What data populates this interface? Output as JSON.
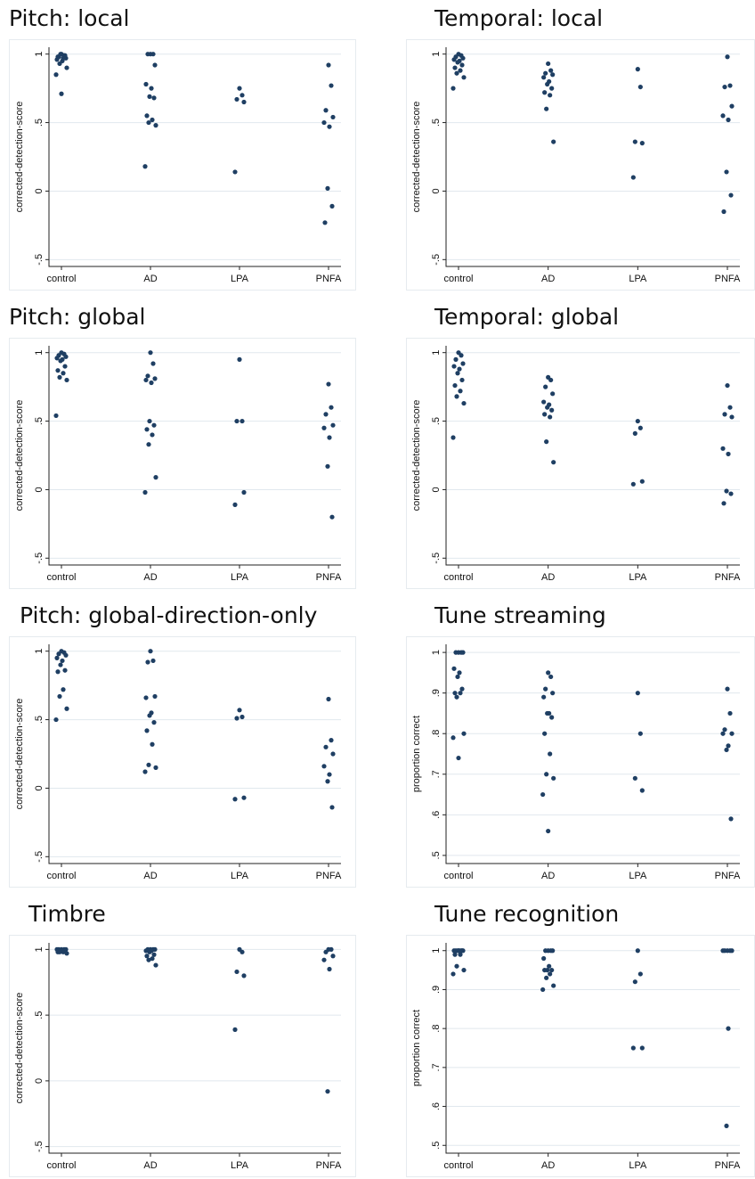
{
  "colors": {
    "point": "#1f3f63",
    "grid": "#e1e8ee"
  },
  "chart_data": [
    {
      "type": "scatter",
      "title": "Pitch: local",
      "xlabel": "",
      "ylabel": "corrected-detection-score",
      "categories": [
        "control",
        "AD",
        "LPA",
        "PNFA"
      ],
      "ylim": [
        -0.55,
        1.05
      ],
      "yticks": [
        -0.5,
        0,
        0.5,
        1
      ],
      "ytick_labels": [
        "-.5",
        "0",
        ".5",
        "1"
      ],
      "points": [
        [
          0,
          1
        ],
        [
          0,
          0.99
        ],
        [
          0,
          0.98
        ],
        [
          0,
          0.97
        ],
        [
          0,
          0.96
        ],
        [
          0,
          0.95
        ],
        [
          0,
          1
        ],
        [
          0,
          0.99
        ],
        [
          0,
          0.98
        ],
        [
          0,
          0.97
        ],
        [
          0,
          0.93
        ],
        [
          0,
          0.9
        ],
        [
          0,
          0.85
        ],
        [
          0,
          0.71
        ],
        [
          1,
          1
        ],
        [
          1,
          1
        ],
        [
          1,
          1
        ],
        [
          1,
          0.92
        ],
        [
          1,
          0.78
        ],
        [
          1,
          0.75
        ],
        [
          1,
          0.69
        ],
        [
          1,
          0.68
        ],
        [
          1,
          0.55
        ],
        [
          1,
          0.52
        ],
        [
          1,
          0.5
        ],
        [
          1,
          0.48
        ],
        [
          1,
          0.18
        ],
        [
          2,
          0.75
        ],
        [
          2,
          0.7
        ],
        [
          2,
          0.67
        ],
        [
          2,
          0.65
        ],
        [
          2,
          0.14
        ],
        [
          3,
          0.92
        ],
        [
          3,
          0.77
        ],
        [
          3,
          0.59
        ],
        [
          3,
          0.54
        ],
        [
          3,
          0.5
        ],
        [
          3,
          0.47
        ],
        [
          3,
          0.02
        ],
        [
          3,
          -0.11
        ],
        [
          3,
          -0.23
        ]
      ]
    },
    {
      "type": "scatter",
      "title": "Temporal: local",
      "xlabel": "",
      "ylabel": "corrected-detection-score",
      "categories": [
        "control",
        "AD",
        "LPA",
        "PNFA"
      ],
      "ylim": [
        -0.55,
        1.05
      ],
      "yticks": [
        -0.5,
        0,
        0.5,
        1
      ],
      "ytick_labels": [
        "-.5",
        "0",
        ".5",
        "1"
      ],
      "points": [
        [
          0,
          1
        ],
        [
          0,
          0.99
        ],
        [
          0,
          0.98
        ],
        [
          0,
          0.97
        ],
        [
          0,
          0.96
        ],
        [
          0,
          0.95
        ],
        [
          0,
          0.94
        ],
        [
          0,
          0.92
        ],
        [
          0,
          0.9
        ],
        [
          0,
          0.88
        ],
        [
          0,
          0.86
        ],
        [
          0,
          0.83
        ],
        [
          0,
          0.75
        ],
        [
          1,
          0.93
        ],
        [
          1,
          0.88
        ],
        [
          1,
          0.86
        ],
        [
          1,
          0.85
        ],
        [
          1,
          0.83
        ],
        [
          1,
          0.8
        ],
        [
          1,
          0.78
        ],
        [
          1,
          0.75
        ],
        [
          1,
          0.72
        ],
        [
          1,
          0.7
        ],
        [
          1,
          0.6
        ],
        [
          1,
          0.36
        ],
        [
          2,
          0.89
        ],
        [
          2,
          0.76
        ],
        [
          2,
          0.36
        ],
        [
          2,
          0.35
        ],
        [
          2,
          0.1
        ],
        [
          3,
          0.98
        ],
        [
          3,
          0.77
        ],
        [
          3,
          0.76
        ],
        [
          3,
          0.62
        ],
        [
          3,
          0.55
        ],
        [
          3,
          0.52
        ],
        [
          3,
          0.14
        ],
        [
          3,
          -0.03
        ],
        [
          3,
          -0.15
        ]
      ]
    },
    {
      "type": "scatter",
      "title": "Pitch: global",
      "xlabel": "",
      "ylabel": "corrected-detection-score",
      "categories": [
        "control",
        "AD",
        "LPA",
        "PNFA"
      ],
      "ylim": [
        -0.55,
        1.05
      ],
      "yticks": [
        -0.5,
        0,
        0.5,
        1
      ],
      "ytick_labels": [
        "-.5",
        "0",
        ".5",
        "1"
      ],
      "points": [
        [
          0,
          1
        ],
        [
          0,
          0.99
        ],
        [
          0,
          0.98
        ],
        [
          0,
          0.97
        ],
        [
          0,
          0.96
        ],
        [
          0,
          0.95
        ],
        [
          0,
          0.94
        ],
        [
          0,
          0.9
        ],
        [
          0,
          0.87
        ],
        [
          0,
          0.85
        ],
        [
          0,
          0.82
        ],
        [
          0,
          0.8
        ],
        [
          0,
          0.54
        ],
        [
          1,
          1
        ],
        [
          1,
          0.92
        ],
        [
          1,
          0.83
        ],
        [
          1,
          0.81
        ],
        [
          1,
          0.8
        ],
        [
          1,
          0.78
        ],
        [
          1,
          0.5
        ],
        [
          1,
          0.47
        ],
        [
          1,
          0.44
        ],
        [
          1,
          0.4
        ],
        [
          1,
          0.33
        ],
        [
          1,
          0.09
        ],
        [
          1,
          -0.02
        ],
        [
          2,
          0.95
        ],
        [
          2,
          0.5
        ],
        [
          2,
          0.5
        ],
        [
          2,
          -0.02
        ],
        [
          2,
          -0.11
        ],
        [
          3,
          0.77
        ],
        [
          3,
          0.6
        ],
        [
          3,
          0.55
        ],
        [
          3,
          0.47
        ],
        [
          3,
          0.45
        ],
        [
          3,
          0.38
        ],
        [
          3,
          0.17
        ],
        [
          3,
          -0.2
        ]
      ]
    },
    {
      "type": "scatter",
      "title": "Temporal: global",
      "xlabel": "",
      "ylabel": "corrected-detection-score",
      "categories": [
        "control",
        "AD",
        "LPA",
        "PNFA"
      ],
      "ylim": [
        -0.55,
        1.05
      ],
      "yticks": [
        -0.5,
        0,
        0.5,
        1
      ],
      "ytick_labels": [
        "-.5",
        "0",
        ".5",
        "1"
      ],
      "points": [
        [
          0,
          1
        ],
        [
          0,
          0.98
        ],
        [
          0,
          0.95
        ],
        [
          0,
          0.92
        ],
        [
          0,
          0.9
        ],
        [
          0,
          0.88
        ],
        [
          0,
          0.85
        ],
        [
          0,
          0.8
        ],
        [
          0,
          0.76
        ],
        [
          0,
          0.72
        ],
        [
          0,
          0.68
        ],
        [
          0,
          0.63
        ],
        [
          0,
          0.38
        ],
        [
          1,
          0.82
        ],
        [
          1,
          0.8
        ],
        [
          1,
          0.75
        ],
        [
          1,
          0.7
        ],
        [
          1,
          0.64
        ],
        [
          1,
          0.62
        ],
        [
          1,
          0.6
        ],
        [
          1,
          0.58
        ],
        [
          1,
          0.55
        ],
        [
          1,
          0.53
        ],
        [
          1,
          0.35
        ],
        [
          1,
          0.2
        ],
        [
          2,
          0.5
        ],
        [
          2,
          0.45
        ],
        [
          2,
          0.41
        ],
        [
          2,
          0.06
        ],
        [
          2,
          0.04
        ],
        [
          3,
          0.76
        ],
        [
          3,
          0.6
        ],
        [
          3,
          0.55
        ],
        [
          3,
          0.53
        ],
        [
          3,
          0.3
        ],
        [
          3,
          0.26
        ],
        [
          3,
          -0.01
        ],
        [
          3,
          -0.03
        ],
        [
          3,
          -0.1
        ]
      ]
    },
    {
      "type": "scatter",
      "title": "Pitch: global-direction-only",
      "xlabel": "",
      "ylabel": "corrected-detection-score",
      "categories": [
        "control",
        "AD",
        "LPA",
        "PNFA"
      ],
      "ylim": [
        -0.55,
        1.05
      ],
      "yticks": [
        -0.5,
        0,
        0.5,
        1
      ],
      "ytick_labels": [
        "-.5",
        "0",
        ".5",
        "1"
      ],
      "points": [
        [
          0,
          1
        ],
        [
          0,
          0.99
        ],
        [
          0,
          0.98
        ],
        [
          0,
          0.97
        ],
        [
          0,
          0.95
        ],
        [
          0,
          0.93
        ],
        [
          0,
          0.9
        ],
        [
          0,
          0.86
        ],
        [
          0,
          0.85
        ],
        [
          0,
          0.72
        ],
        [
          0,
          0.67
        ],
        [
          0,
          0.58
        ],
        [
          0,
          0.5
        ],
        [
          1,
          1
        ],
        [
          1,
          0.93
        ],
        [
          1,
          0.92
        ],
        [
          1,
          0.67
        ],
        [
          1,
          0.66
        ],
        [
          1,
          0.55
        ],
        [
          1,
          0.53
        ],
        [
          1,
          0.48
        ],
        [
          1,
          0.42
        ],
        [
          1,
          0.32
        ],
        [
          1,
          0.17
        ],
        [
          1,
          0.15
        ],
        [
          1,
          0.12
        ],
        [
          2,
          0.57
        ],
        [
          2,
          0.52
        ],
        [
          2,
          0.51
        ],
        [
          2,
          -0.07
        ],
        [
          2,
          -0.08
        ],
        [
          3,
          0.65
        ],
        [
          3,
          0.35
        ],
        [
          3,
          0.3
        ],
        [
          3,
          0.25
        ],
        [
          3,
          0.16
        ],
        [
          3,
          0.1
        ],
        [
          3,
          0.05
        ],
        [
          3,
          -0.14
        ]
      ]
    },
    {
      "type": "scatter",
      "title": "Tune streaming",
      "xlabel": "",
      "ylabel": "proportion correct",
      "categories": [
        "control",
        "AD",
        "LPA",
        "PNFA"
      ],
      "ylim": [
        0.48,
        1.02
      ],
      "yticks": [
        0.5,
        0.6,
        0.7,
        0.8,
        0.9,
        1
      ],
      "ytick_labels": [
        ".5",
        ".6",
        ".7",
        ".8",
        ".9",
        "1"
      ],
      "points": [
        [
          0,
          1
        ],
        [
          0,
          1
        ],
        [
          0,
          1
        ],
        [
          0,
          1
        ],
        [
          0,
          0.96
        ],
        [
          0,
          0.95
        ],
        [
          0,
          0.94
        ],
        [
          0,
          0.91
        ],
        [
          0,
          0.9
        ],
        [
          0,
          0.9
        ],
        [
          0,
          0.89
        ],
        [
          0,
          0.8
        ],
        [
          0,
          0.79
        ],
        [
          0,
          0.74
        ],
        [
          1,
          0.95
        ],
        [
          1,
          0.94
        ],
        [
          1,
          0.91
        ],
        [
          1,
          0.9
        ],
        [
          1,
          0.89
        ],
        [
          1,
          0.85
        ],
        [
          1,
          0.85
        ],
        [
          1,
          0.84
        ],
        [
          1,
          0.8
        ],
        [
          1,
          0.75
        ],
        [
          1,
          0.7
        ],
        [
          1,
          0.69
        ],
        [
          1,
          0.65
        ],
        [
          1,
          0.56
        ],
        [
          2,
          0.9
        ],
        [
          2,
          0.8
        ],
        [
          2,
          0.69
        ],
        [
          2,
          0.66
        ],
        [
          3,
          0.91
        ],
        [
          3,
          0.85
        ],
        [
          3,
          0.81
        ],
        [
          3,
          0.8
        ],
        [
          3,
          0.8
        ],
        [
          3,
          0.77
        ],
        [
          3,
          0.76
        ],
        [
          3,
          0.59
        ]
      ]
    },
    {
      "type": "scatter",
      "title": "Timbre",
      "xlabel": "",
      "ylabel": "corrected-detection-score",
      "categories": [
        "control",
        "AD",
        "LPA",
        "PNFA"
      ],
      "ylim": [
        -0.55,
        1.05
      ],
      "yticks": [
        -0.5,
        0,
        0.5,
        1
      ],
      "ytick_labels": [
        "-.5",
        "0",
        ".5",
        "1"
      ],
      "points": [
        [
          0,
          1
        ],
        [
          0,
          1
        ],
        [
          0,
          1
        ],
        [
          0,
          1
        ],
        [
          0,
          1
        ],
        [
          0,
          0.99
        ],
        [
          0,
          0.99
        ],
        [
          0,
          0.99
        ],
        [
          0,
          0.98
        ],
        [
          0,
          0.98
        ],
        [
          0,
          0.98
        ],
        [
          0,
          0.97
        ],
        [
          1,
          1
        ],
        [
          1,
          1
        ],
        [
          1,
          1
        ],
        [
          1,
          1
        ],
        [
          1,
          0.99
        ],
        [
          1,
          0.99
        ],
        [
          1,
          0.98
        ],
        [
          1,
          0.96
        ],
        [
          1,
          0.95
        ],
        [
          1,
          0.93
        ],
        [
          1,
          0.92
        ],
        [
          1,
          0.88
        ],
        [
          2,
          1
        ],
        [
          2,
          0.98
        ],
        [
          2,
          0.83
        ],
        [
          2,
          0.8
        ],
        [
          2,
          0.39
        ],
        [
          3,
          1
        ],
        [
          3,
          1
        ],
        [
          3,
          0.98
        ],
        [
          3,
          0.95
        ],
        [
          3,
          0.92
        ],
        [
          3,
          0.85
        ],
        [
          3,
          -0.08
        ]
      ]
    },
    {
      "type": "scatter",
      "title": "Tune recognition",
      "xlabel": "",
      "ylabel": "proportion correct",
      "categories": [
        "control",
        "AD",
        "LPA",
        "PNFA"
      ],
      "ylim": [
        0.48,
        1.02
      ],
      "yticks": [
        0.5,
        0.6,
        0.7,
        0.8,
        0.9,
        1
      ],
      "ytick_labels": [
        ".5",
        ".6",
        ".7",
        ".8",
        ".9",
        "1"
      ],
      "points": [
        [
          0,
          1
        ],
        [
          0,
          1
        ],
        [
          0,
          1
        ],
        [
          0,
          1
        ],
        [
          0,
          1
        ],
        [
          0,
          1
        ],
        [
          0,
          1
        ],
        [
          0,
          1
        ],
        [
          0,
          0.99
        ],
        [
          0,
          0.99
        ],
        [
          0,
          0.96
        ],
        [
          0,
          0.95
        ],
        [
          0,
          0.94
        ],
        [
          1,
          1
        ],
        [
          1,
          1
        ],
        [
          1,
          1
        ],
        [
          1,
          1
        ],
        [
          1,
          0.98
        ],
        [
          1,
          0.96
        ],
        [
          1,
          0.95
        ],
        [
          1,
          0.95
        ],
        [
          1,
          0.95
        ],
        [
          1,
          0.94
        ],
        [
          1,
          0.93
        ],
        [
          1,
          0.91
        ],
        [
          1,
          0.9
        ],
        [
          2,
          1
        ],
        [
          2,
          0.94
        ],
        [
          2,
          0.92
        ],
        [
          2,
          0.75
        ],
        [
          2,
          0.75
        ],
        [
          3,
          1
        ],
        [
          3,
          1
        ],
        [
          3,
          1
        ],
        [
          3,
          1
        ],
        [
          3,
          1
        ],
        [
          3,
          0.8
        ],
        [
          3,
          0.55
        ]
      ]
    }
  ]
}
